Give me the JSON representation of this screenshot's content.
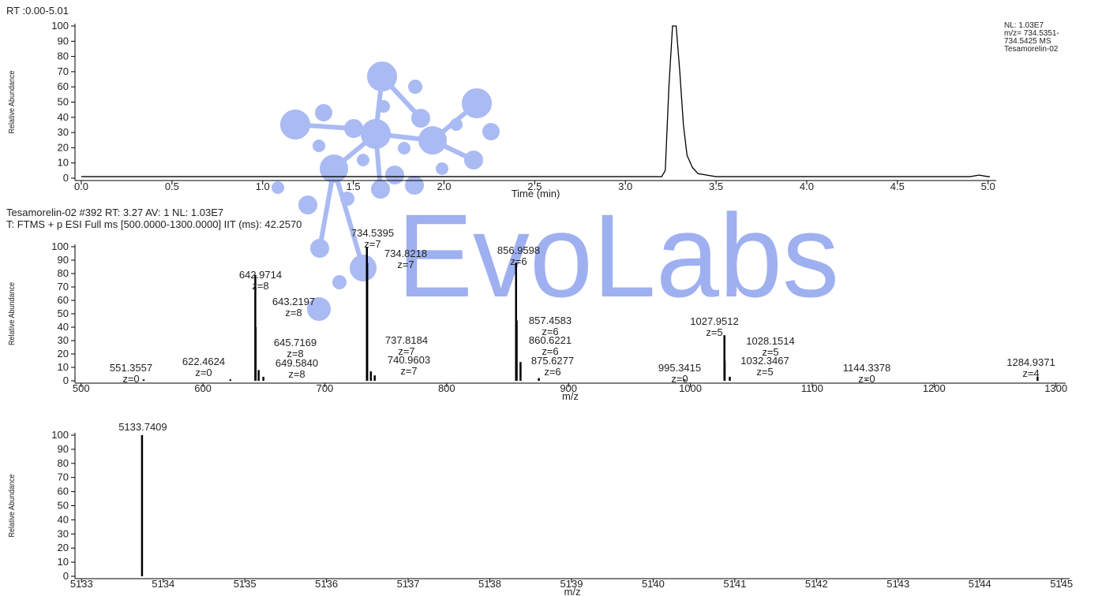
{
  "chart_data": [
    {
      "type": "line",
      "title": "RT :0.00-5.01",
      "annotation": [
        "NL: 1.03E7",
        "m/z= 734.5351-",
        "734.5425 MS",
        "Tesamorelin-02"
      ],
      "ylabel": "Relative Abundance",
      "xlabel": "Time (min)",
      "color": "#000000",
      "x": [
        0.0,
        1.0,
        2.0,
        3.0,
        3.2,
        3.22,
        3.24,
        3.26,
        3.28,
        3.3,
        3.32,
        3.34,
        3.37,
        3.4,
        3.45,
        3.5,
        4.0,
        4.9,
        4.95,
        5.0,
        5.01
      ],
      "values": [
        1,
        1,
        1,
        1,
        1,
        5,
        60,
        100,
        100,
        70,
        35,
        15,
        7,
        3,
        2,
        1,
        1,
        1,
        2,
        1,
        1
      ],
      "xlim": [
        0,
        5.01
      ],
      "ylim": [
        0,
        100
      ],
      "xticks": [
        {
          "value": 0,
          "label": "0.0"
        },
        0.5,
        {
          "value": 1,
          "label": "1.0"
        },
        1.5,
        {
          "value": 2,
          "label": "2.0"
        },
        2.5,
        {
          "value": 3,
          "label": "3.0"
        },
        3.5,
        {
          "value": 4,
          "label": "4.0"
        },
        4.5,
        {
          "value": 5,
          "label": "5.0"
        }
      ],
      "yticks": [
        0,
        10,
        20,
        30,
        40,
        50,
        60,
        70,
        80,
        90,
        100
      ]
    },
    {
      "type": "stick",
      "title": "Tesamorelin-02 #392 RT: 3.27 AV: 1 NL: 1.03E7",
      "subtitle": "T: FTMS + p ESI Full ms [500.0000-1300.0000] IIT (ms): 42.2570",
      "ylabel": "Relative Abundance",
      "xlabel": "m/z",
      "color": "#000000",
      "x": [
        551.3557,
        622.4624,
        642.9714,
        643.2197,
        645.7169,
        649.584,
        734.5395,
        734.8218,
        737.8184,
        740.9603,
        856.9598,
        857.4583,
        860.6221,
        875.6277,
        995.3415,
        1027.9512,
        1028.1514,
        1032.3467,
        1144.3378,
        1284.9371
      ],
      "x_labels": [
        "551.3557",
        "622.4624",
        "642.9714",
        "643.2197",
        "645.7169",
        "649.5840",
        "734.5395",
        "734.8218",
        "737.8184",
        "740.9603",
        "856.9598",
        "857.4583",
        "860.6221",
        "875.6277",
        "995.3415",
        "1027.9512",
        "1028.1514",
        "1032.3467",
        "1144.3378",
        "1284.9371"
      ],
      "charges": [
        "z=0",
        "z=0",
        "z=8",
        "z=8",
        "z=8",
        "z=8",
        "z=7",
        "z=7",
        "z=7",
        "z=7",
        "z=6",
        "z=6",
        "z=6",
        "z=6",
        "z=0",
        "z=5",
        "z=5",
        "z=5",
        "z=0",
        "z=4"
      ],
      "values": [
        1,
        1,
        79,
        40,
        8,
        3,
        100,
        88,
        7,
        4,
        88,
        45,
        14,
        2,
        1,
        34,
        15,
        3,
        1,
        3
      ],
      "xlim": [
        495,
        1308
      ],
      "ylim": [
        0,
        100
      ],
      "xticks": [
        500,
        600,
        700,
        800,
        900,
        1000,
        1100,
        1200,
        1300
      ],
      "yticks": [
        0,
        10,
        20,
        30,
        40,
        50,
        60,
        70,
        80,
        90,
        100
      ]
    },
    {
      "type": "stick",
      "ylabel": "Relative Abundance",
      "xlabel": "m/z",
      "color": "#000000",
      "x": [
        5133.7409
      ],
      "values": [
        100
      ],
      "xlim": [
        5132.92,
        5145.1
      ],
      "ylim": [
        0,
        100
      ],
      "xticks": [
        5133,
        5134,
        5135,
        5136,
        5137,
        5138,
        5139,
        5140,
        5141,
        5142,
        5143,
        5144,
        5145
      ],
      "yticks": [
        0,
        10,
        20,
        30,
        40,
        50,
        60,
        70,
        80,
        90,
        100
      ]
    }
  ],
  "watermark": "EvoLabs"
}
